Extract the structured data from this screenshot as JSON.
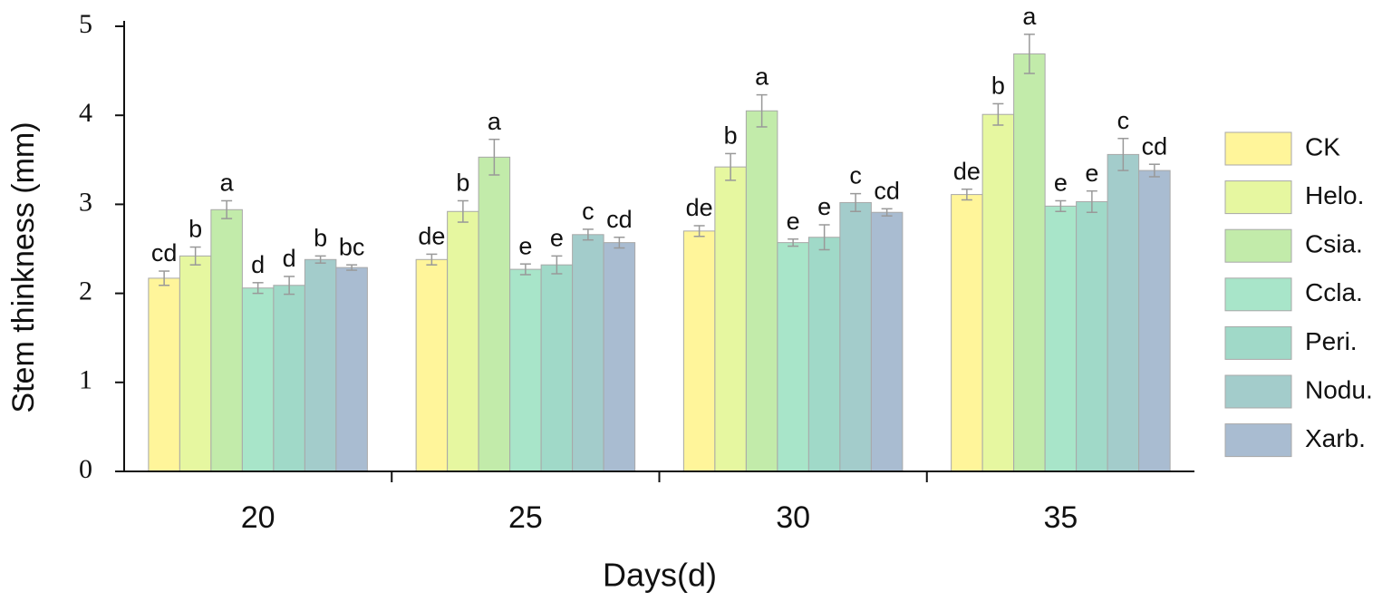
{
  "chart_data": {
    "type": "bar",
    "y_label": "Stem thinkness (mm)",
    "x_label": "Days(d)",
    "categories": [
      "20",
      "25",
      "30",
      "35"
    ],
    "ylim": [
      0,
      5
    ],
    "yticks": [
      0,
      1,
      2,
      3,
      4,
      5
    ],
    "legend": "right",
    "series": [
      {
        "name": "CK",
        "color": "#fff59a",
        "values": [
          2.17,
          2.38,
          2.7,
          3.11
        ],
        "errors": [
          0.08,
          0.06,
          0.06,
          0.06
        ],
        "letters": [
          "cd",
          "de",
          "de",
          "de"
        ]
      },
      {
        "name": "Helo.",
        "color": "#e6f7a0",
        "values": [
          2.42,
          2.92,
          3.42,
          4.01
        ],
        "errors": [
          0.1,
          0.12,
          0.15,
          0.12
        ],
        "letters": [
          "b",
          "b",
          "b",
          "b"
        ]
      },
      {
        "name": "Csia.",
        "color": "#c2ebaa",
        "values": [
          2.94,
          3.53,
          4.05,
          4.69
        ],
        "errors": [
          0.1,
          0.2,
          0.18,
          0.22
        ],
        "letters": [
          "a",
          "a",
          "a",
          "a"
        ]
      },
      {
        "name": "Ccla.",
        "color": "#a8e5c9",
        "values": [
          2.06,
          2.27,
          2.57,
          2.98
        ],
        "errors": [
          0.06,
          0.06,
          0.04,
          0.06
        ],
        "letters": [
          "d",
          "e",
          "e",
          "e"
        ]
      },
      {
        "name": "Peri.",
        "color": "#a0d9c8",
        "values": [
          2.09,
          2.32,
          2.63,
          3.03
        ],
        "errors": [
          0.1,
          0.1,
          0.14,
          0.12
        ],
        "letters": [
          "d",
          "e",
          "e",
          "e"
        ]
      },
      {
        "name": "Nodu.",
        "color": "#a3cccb",
        "values": [
          2.38,
          2.66,
          3.02,
          3.56
        ],
        "errors": [
          0.04,
          0.06,
          0.1,
          0.18
        ],
        "letters": [
          "b",
          "c",
          "c",
          "c"
        ]
      },
      {
        "name": "Xarb.",
        "color": "#a9bcd1",
        "values": [
          2.29,
          2.57,
          2.91,
          3.38
        ],
        "errors": [
          0.03,
          0.06,
          0.04,
          0.07
        ],
        "letters": [
          "bc",
          "cd",
          "cd",
          "cd"
        ]
      }
    ]
  }
}
